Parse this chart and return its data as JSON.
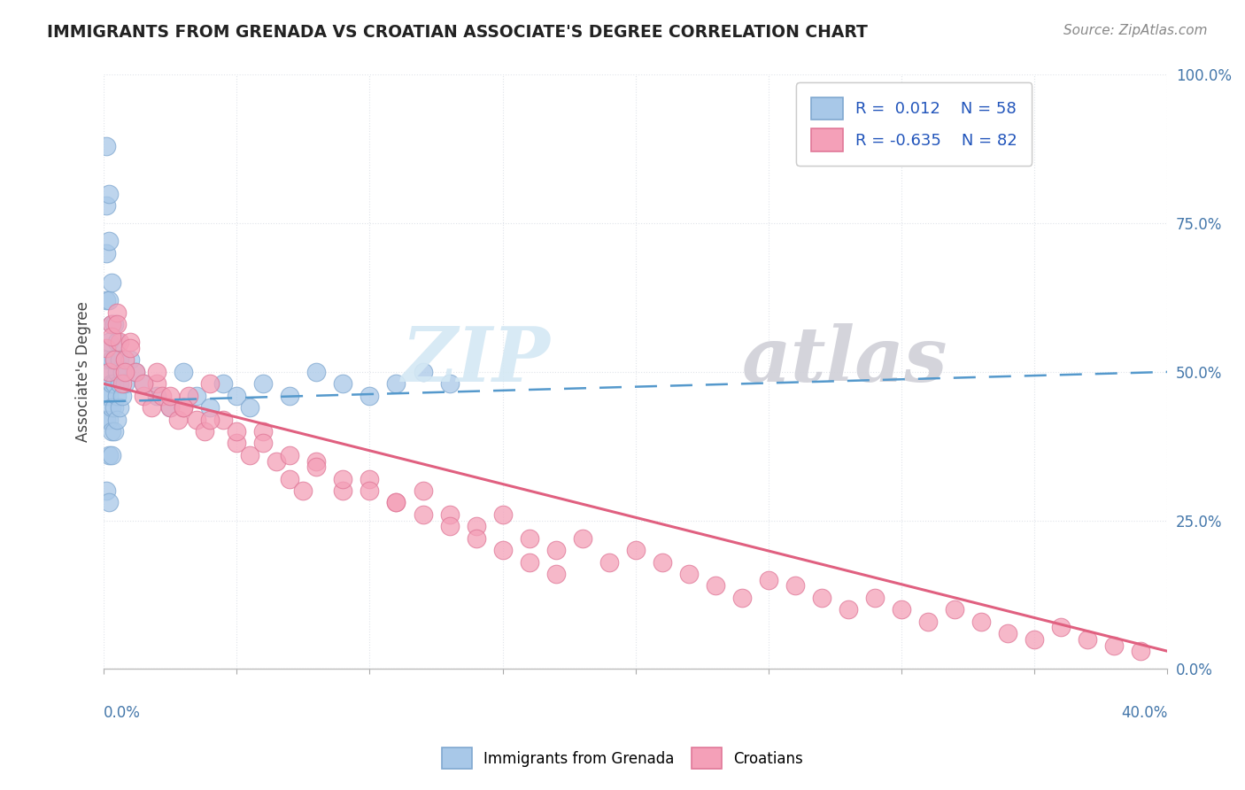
{
  "title": "IMMIGRANTS FROM GRENADA VS CROATIAN ASSOCIATE'S DEGREE CORRELATION CHART",
  "source": "Source: ZipAtlas.com",
  "ylabel": "Associate's Degree",
  "xlim": [
    0.0,
    0.4
  ],
  "ylim": [
    0.0,
    1.0
  ],
  "yticks": [
    0.0,
    0.25,
    0.5,
    0.75,
    1.0
  ],
  "ytick_labels": [
    "0.0%",
    "25.0%",
    "50.0%",
    "75.0%",
    "100.0%"
  ],
  "legend1_label": "R =  0.012    N = 58",
  "legend2_label": "R = -0.635    N = 82",
  "legend_bottom_1": "Immigrants from Grenada",
  "legend_bottom_2": "Croatians",
  "blue_color": "#a8c8e8",
  "pink_color": "#f4a0b8",
  "blue_edge_color": "#80a8d0",
  "pink_edge_color": "#e07898",
  "blue_line_color": "#5599cc",
  "pink_line_color": "#e06080",
  "blue_trend": [
    0.45,
    0.5
  ],
  "pink_trend": [
    0.48,
    0.03
  ],
  "watermark_zip_color": "#d4e8f4",
  "watermark_atlas_color": "#d0d0d8",
  "grid_color": "#e0e4ea",
  "title_color": "#222222",
  "source_color": "#888888",
  "tick_color": "#4477aa",
  "blue_x": [
    0.001,
    0.001,
    0.001,
    0.001,
    0.001,
    0.001,
    0.001,
    0.001,
    0.002,
    0.002,
    0.002,
    0.002,
    0.002,
    0.002,
    0.002,
    0.002,
    0.002,
    0.003,
    0.003,
    0.003,
    0.003,
    0.003,
    0.003,
    0.003,
    0.004,
    0.004,
    0.004,
    0.004,
    0.004,
    0.005,
    0.005,
    0.005,
    0.005,
    0.006,
    0.006,
    0.006,
    0.007,
    0.007,
    0.008,
    0.01,
    0.012,
    0.015,
    0.02,
    0.025,
    0.03,
    0.035,
    0.04,
    0.045,
    0.05,
    0.055,
    0.06,
    0.07,
    0.08,
    0.09,
    0.1,
    0.11,
    0.12,
    0.13
  ],
  "blue_y": [
    0.88,
    0.78,
    0.7,
    0.62,
    0.52,
    0.46,
    0.42,
    0.3,
    0.8,
    0.72,
    0.62,
    0.55,
    0.5,
    0.46,
    0.42,
    0.36,
    0.28,
    0.65,
    0.58,
    0.52,
    0.48,
    0.44,
    0.4,
    0.36,
    0.58,
    0.52,
    0.48,
    0.44,
    0.4,
    0.55,
    0.5,
    0.46,
    0.42,
    0.52,
    0.48,
    0.44,
    0.5,
    0.46,
    0.48,
    0.52,
    0.5,
    0.48,
    0.46,
    0.44,
    0.5,
    0.46,
    0.44,
    0.48,
    0.46,
    0.44,
    0.48,
    0.46,
    0.5,
    0.48,
    0.46,
    0.48,
    0.5,
    0.48
  ],
  "pink_x": [
    0.001,
    0.002,
    0.003,
    0.004,
    0.005,
    0.006,
    0.007,
    0.008,
    0.01,
    0.012,
    0.015,
    0.018,
    0.02,
    0.022,
    0.025,
    0.028,
    0.03,
    0.032,
    0.035,
    0.038,
    0.04,
    0.045,
    0.05,
    0.055,
    0.06,
    0.065,
    0.07,
    0.075,
    0.08,
    0.09,
    0.1,
    0.11,
    0.12,
    0.13,
    0.14,
    0.15,
    0.16,
    0.17,
    0.18,
    0.19,
    0.2,
    0.21,
    0.22,
    0.23,
    0.24,
    0.25,
    0.26,
    0.27,
    0.28,
    0.29,
    0.3,
    0.31,
    0.32,
    0.33,
    0.34,
    0.35,
    0.36,
    0.37,
    0.38,
    0.39,
    0.003,
    0.005,
    0.008,
    0.01,
    0.015,
    0.02,
    0.025,
    0.03,
    0.04,
    0.05,
    0.06,
    0.07,
    0.08,
    0.09,
    0.1,
    0.11,
    0.12,
    0.13,
    0.14,
    0.15,
    0.16,
    0.17
  ],
  "pink_y": [
    0.54,
    0.5,
    0.58,
    0.52,
    0.6,
    0.55,
    0.48,
    0.52,
    0.55,
    0.5,
    0.46,
    0.44,
    0.48,
    0.46,
    0.44,
    0.42,
    0.44,
    0.46,
    0.42,
    0.4,
    0.48,
    0.42,
    0.38,
    0.36,
    0.4,
    0.35,
    0.32,
    0.3,
    0.35,
    0.3,
    0.32,
    0.28,
    0.3,
    0.26,
    0.24,
    0.26,
    0.22,
    0.2,
    0.22,
    0.18,
    0.2,
    0.18,
    0.16,
    0.14,
    0.12,
    0.15,
    0.14,
    0.12,
    0.1,
    0.12,
    0.1,
    0.08,
    0.1,
    0.08,
    0.06,
    0.05,
    0.07,
    0.05,
    0.04,
    0.03,
    0.56,
    0.58,
    0.5,
    0.54,
    0.48,
    0.5,
    0.46,
    0.44,
    0.42,
    0.4,
    0.38,
    0.36,
    0.34,
    0.32,
    0.3,
    0.28,
    0.26,
    0.24,
    0.22,
    0.2,
    0.18,
    0.16
  ]
}
